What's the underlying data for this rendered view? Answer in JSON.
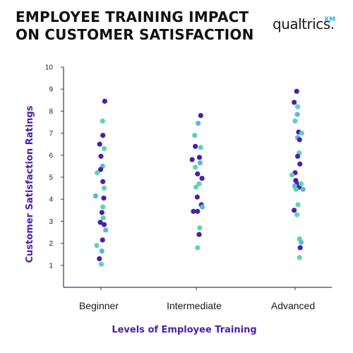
{
  "title_lines": [
    "EMPLOYEE TRAINING IMPACT",
    "ON CUSTOMER SATISFACTION"
  ],
  "logo": {
    "text": "qualtrics.",
    "superscript": "XM"
  },
  "colors": {
    "purple": "#4b1fa8",
    "teal": "#5fd3b0",
    "blue": "#5ab8e0",
    "axis_label": "#4b1fa8",
    "axis": "#2d3e6e"
  },
  "chart_data": {
    "type": "scatter",
    "title": "EMPLOYEE TRAINING IMPACT ON CUSTOMER SATISFACTION",
    "xlabel": "Levels of Employee Training",
    "ylabel": "Customer Satisfaction Ratings",
    "categories": [
      "Beginner",
      "Intermediate",
      "Advanced"
    ],
    "ylim": [
      0,
      10
    ],
    "yticks": [
      1,
      2,
      3,
      4,
      5,
      6,
      7,
      8,
      9,
      10
    ],
    "grid": false,
    "points": [
      {
        "cat": 0,
        "jitter": 0.12,
        "y": 8.45,
        "color": "purple"
      },
      {
        "cat": 0,
        "jitter": 0.05,
        "y": 7.55,
        "color": "teal"
      },
      {
        "cat": 0,
        "jitter": 0.06,
        "y": 6.9,
        "color": "purple"
      },
      {
        "cat": 0,
        "jitter": -0.04,
        "y": 6.5,
        "color": "purple"
      },
      {
        "cat": 0,
        "jitter": 0.1,
        "y": 6.3,
        "color": "teal"
      },
      {
        "cat": 0,
        "jitter": 0.0,
        "y": 5.95,
        "color": "purple"
      },
      {
        "cat": 0,
        "jitter": 0.05,
        "y": 5.5,
        "color": "blue"
      },
      {
        "cat": 0,
        "jitter": -0.01,
        "y": 5.35,
        "color": "purple"
      },
      {
        "cat": 0,
        "jitter": -0.12,
        "y": 5.2,
        "color": "teal"
      },
      {
        "cat": 0,
        "jitter": 0.06,
        "y": 4.8,
        "color": "purple"
      },
      {
        "cat": 0,
        "jitter": 0.1,
        "y": 4.5,
        "color": "teal"
      },
      {
        "cat": 0,
        "jitter": -0.17,
        "y": 4.15,
        "color": "blue"
      },
      {
        "cat": 0,
        "jitter": 0.09,
        "y": 4.05,
        "color": "purple"
      },
      {
        "cat": 0,
        "jitter": 0.06,
        "y": 3.65,
        "color": "teal"
      },
      {
        "cat": 0,
        "jitter": 0.03,
        "y": 3.4,
        "color": "purple"
      },
      {
        "cat": 0,
        "jitter": 0.07,
        "y": 3.15,
        "color": "teal"
      },
      {
        "cat": 0,
        "jitter": -0.02,
        "y": 2.95,
        "color": "purple"
      },
      {
        "cat": 0,
        "jitter": 0.1,
        "y": 2.85,
        "color": "purple"
      },
      {
        "cat": 0,
        "jitter": 0.15,
        "y": 2.6,
        "color": "blue"
      },
      {
        "cat": 0,
        "jitter": 0.05,
        "y": 2.15,
        "color": "purple"
      },
      {
        "cat": 0,
        "jitter": -0.13,
        "y": 1.9,
        "color": "teal"
      },
      {
        "cat": 0,
        "jitter": 0.03,
        "y": 1.65,
        "color": "blue"
      },
      {
        "cat": 0,
        "jitter": -0.05,
        "y": 1.3,
        "color": "purple"
      },
      {
        "cat": 0,
        "jitter": 0.01,
        "y": 1.05,
        "color": "teal"
      },
      {
        "cat": 1,
        "jitter": 0.14,
        "y": 7.8,
        "color": "purple"
      },
      {
        "cat": 1,
        "jitter": 0.06,
        "y": 7.45,
        "color": "blue"
      },
      {
        "cat": 1,
        "jitter": -0.05,
        "y": 6.9,
        "color": "teal"
      },
      {
        "cat": 1,
        "jitter": -0.03,
        "y": 6.4,
        "color": "purple"
      },
      {
        "cat": 1,
        "jitter": 0.14,
        "y": 6.35,
        "color": "teal"
      },
      {
        "cat": 1,
        "jitter": 0.1,
        "y": 5.9,
        "color": "purple"
      },
      {
        "cat": 1,
        "jitter": -0.13,
        "y": 5.8,
        "color": "purple"
      },
      {
        "cat": 1,
        "jitter": 0.12,
        "y": 5.65,
        "color": "blue"
      },
      {
        "cat": 1,
        "jitter": -0.03,
        "y": 5.45,
        "color": "teal"
      },
      {
        "cat": 1,
        "jitter": 0.04,
        "y": 5.15,
        "color": "purple"
      },
      {
        "cat": 1,
        "jitter": 0.18,
        "y": 4.95,
        "color": "purple"
      },
      {
        "cat": 1,
        "jitter": 0.09,
        "y": 4.7,
        "color": "teal"
      },
      {
        "cat": 1,
        "jitter": -0.01,
        "y": 4.55,
        "color": "teal"
      },
      {
        "cat": 1,
        "jitter": 0.03,
        "y": 4.1,
        "color": "purple"
      },
      {
        "cat": 1,
        "jitter": 0.16,
        "y": 3.75,
        "color": "purple"
      },
      {
        "cat": 1,
        "jitter": 0.19,
        "y": 3.65,
        "color": "blue"
      },
      {
        "cat": 1,
        "jitter": -0.09,
        "y": 3.45,
        "color": "purple"
      },
      {
        "cat": 1,
        "jitter": 0.04,
        "y": 3.45,
        "color": "purple"
      },
      {
        "cat": 1,
        "jitter": 0.11,
        "y": 2.7,
        "color": "teal"
      },
      {
        "cat": 1,
        "jitter": 0.09,
        "y": 2.4,
        "color": "purple"
      },
      {
        "cat": 1,
        "jitter": 0.04,
        "y": 1.8,
        "color": "teal"
      },
      {
        "cat": 2,
        "jitter": 0.05,
        "y": 8.9,
        "color": "purple"
      },
      {
        "cat": 2,
        "jitter": -0.03,
        "y": 8.4,
        "color": "purple"
      },
      {
        "cat": 2,
        "jitter": 0.08,
        "y": 8.2,
        "color": "teal"
      },
      {
        "cat": 2,
        "jitter": 0.07,
        "y": 7.85,
        "color": "blue"
      },
      {
        "cat": 2,
        "jitter": 0.0,
        "y": 7.55,
        "color": "teal"
      },
      {
        "cat": 2,
        "jitter": 0.11,
        "y": 7.05,
        "color": "purple"
      },
      {
        "cat": 2,
        "jitter": 0.21,
        "y": 7.0,
        "color": "teal"
      },
      {
        "cat": 2,
        "jitter": 0.08,
        "y": 6.8,
        "color": "blue"
      },
      {
        "cat": 2,
        "jitter": 0.14,
        "y": 6.7,
        "color": "purple"
      },
      {
        "cat": 2,
        "jitter": 0.13,
        "y": 6.1,
        "color": "teal"
      },
      {
        "cat": 2,
        "jitter": 0.08,
        "y": 5.95,
        "color": "purple"
      },
      {
        "cat": 2,
        "jitter": 0.15,
        "y": 5.6,
        "color": "purple"
      },
      {
        "cat": 2,
        "jitter": 0.0,
        "y": 5.2,
        "color": "purple"
      },
      {
        "cat": 2,
        "jitter": -0.1,
        "y": 5.1,
        "color": "teal"
      },
      {
        "cat": 2,
        "jitter": 0.02,
        "y": 4.85,
        "color": "purple"
      },
      {
        "cat": 2,
        "jitter": 0.06,
        "y": 4.7,
        "color": "purple"
      },
      {
        "cat": 2,
        "jitter": -0.01,
        "y": 4.6,
        "color": "blue"
      },
      {
        "cat": 2,
        "jitter": 0.13,
        "y": 4.55,
        "color": "purple"
      },
      {
        "cat": 2,
        "jitter": 0.19,
        "y": 4.7,
        "color": "teal"
      },
      {
        "cat": 2,
        "jitter": 0.25,
        "y": 4.45,
        "color": "blue"
      },
      {
        "cat": 2,
        "jitter": 0.03,
        "y": 4.45,
        "color": "teal"
      },
      {
        "cat": 2,
        "jitter": 0.09,
        "y": 3.75,
        "color": "teal"
      },
      {
        "cat": 2,
        "jitter": -0.03,
        "y": 3.5,
        "color": "purple"
      },
      {
        "cat": 2,
        "jitter": 0.06,
        "y": 3.3,
        "color": "teal"
      },
      {
        "cat": 2,
        "jitter": 0.14,
        "y": 2.2,
        "color": "teal"
      },
      {
        "cat": 2,
        "jitter": 0.19,
        "y": 2.05,
        "color": "blue"
      },
      {
        "cat": 2,
        "jitter": 0.16,
        "y": 1.8,
        "color": "purple"
      },
      {
        "cat": 2,
        "jitter": 0.14,
        "y": 1.35,
        "color": "teal"
      }
    ]
  }
}
